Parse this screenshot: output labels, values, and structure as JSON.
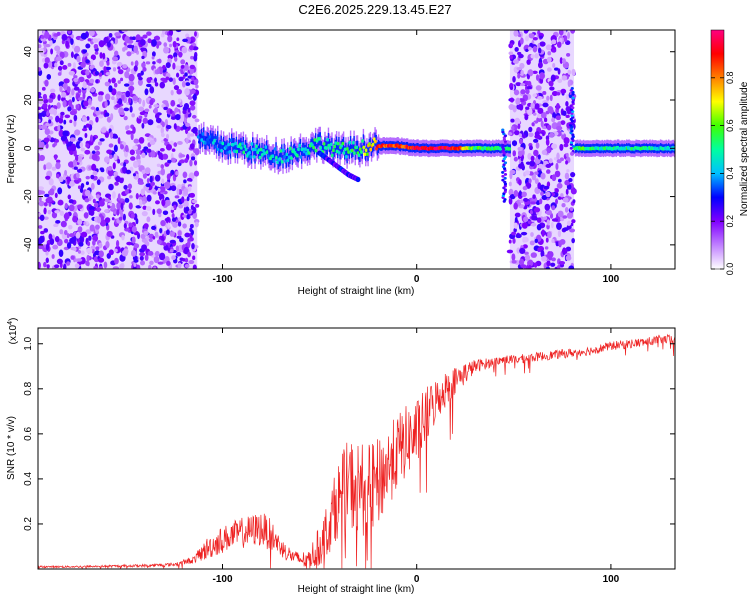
{
  "figure_title": "C2E6.2025.229.13.45.E27",
  "chart_data": [
    {
      "type": "heatmap",
      "title": "",
      "xlabel": "Height of straight line (km)",
      "ylabel": "Frequency (Hz)",
      "xlim": [
        -195,
        133
      ],
      "ylim": [
        -50,
        49
      ],
      "x_ticks": [
        -100,
        0,
        100
      ],
      "y_ticks": [
        -40,
        -20,
        0,
        20,
        40
      ],
      "x_tick_labels": [
        "-100",
        "0",
        "100"
      ],
      "y_tick_labels": [
        "-40",
        "-20",
        "0",
        "20",
        "40"
      ],
      "noise_regions": [
        {
          "x_from": -195,
          "x_to": -113,
          "y_from": -50,
          "y_to": 49
        },
        {
          "x_from": 48,
          "x_to": 81,
          "y_from": -50,
          "y_to": 49
        }
      ],
      "ridge": [
        {
          "x": -125,
          "y": 5,
          "amp": 0.35
        },
        {
          "x": -110,
          "y": 3,
          "amp": 0.4
        },
        {
          "x": -100,
          "y": 1,
          "amp": 0.4
        },
        {
          "x": -90,
          "y": 0,
          "amp": 0.45
        },
        {
          "x": -80,
          "y": -2,
          "amp": 0.45
        },
        {
          "x": -70,
          "y": -3,
          "amp": 0.45
        },
        {
          "x": -60,
          "y": -1,
          "amp": 0.45
        },
        {
          "x": -50,
          "y": 2,
          "amp": 0.5
        },
        {
          "x": -40,
          "y": -1,
          "amp": 0.5
        },
        {
          "x": -30,
          "y": 0,
          "amp": 0.5
        },
        {
          "x": -20,
          "y": 1,
          "amp": 0.85
        },
        {
          "x": -10,
          "y": 1,
          "amp": 0.85
        },
        {
          "x": 0,
          "y": 0,
          "amp": 0.95
        },
        {
          "x": 10,
          "y": 0,
          "amp": 0.95
        },
        {
          "x": 20,
          "y": 0,
          "amp": 0.9
        },
        {
          "x": 30,
          "y": 0,
          "amp": 0.55
        },
        {
          "x": 40,
          "y": 0,
          "amp": 0.5
        },
        {
          "x": 85,
          "y": 0,
          "amp": 0.55
        },
        {
          "x": 95,
          "y": 0,
          "amp": 0.5
        },
        {
          "x": 105,
          "y": 0,
          "amp": 0.5
        },
        {
          "x": 115,
          "y": 0,
          "amp": 0.5
        },
        {
          "x": 125,
          "y": 0,
          "amp": 0.45
        },
        {
          "x": 133,
          "y": 0,
          "amp": 0.45
        }
      ],
      "side_branch": [
        {
          "x": -50,
          "y": -2
        },
        {
          "x": -40,
          "y": -8
        },
        {
          "x": -35,
          "y": -11
        },
        {
          "x": -30,
          "y": -13
        }
      ],
      "colorbar": {
        "label": "Normalized spectral amplitude",
        "range": [
          0,
          1
        ],
        "ticks": [
          0.0,
          0.2,
          0.4,
          0.6,
          0.8
        ],
        "tick_labels": [
          "0.0",
          "0.2",
          "0.4",
          "0.6",
          "0.8"
        ],
        "colors": [
          "#ffffff",
          "#c080ff",
          "#8000ff",
          "#0000ff",
          "#00c0ff",
          "#00ffa0",
          "#40ff00",
          "#ffff00",
          "#ff8000",
          "#ff0000",
          "#ff0080"
        ]
      }
    },
    {
      "type": "line",
      "title": "",
      "xlabel": "Height of straight line (km)",
      "ylabel": "SNR (10 * v/v)",
      "y_multiplier": "(x10",
      "y_multiplier_exp": "4",
      "y_multiplier_close": ")",
      "xlim": [
        -195,
        133
      ],
      "ylim": [
        0,
        1.07
      ],
      "x_ticks": [
        -100,
        0,
        100
      ],
      "y_ticks": [
        0.2,
        0.4,
        0.6,
        0.8,
        1.0
      ],
      "x_tick_labels": [
        "-100",
        "0",
        "100"
      ],
      "y_tick_labels": [
        "0.2",
        "0.4",
        "0.6",
        "0.8",
        "1.0"
      ],
      "color": "#ee2222",
      "series": [
        {
          "x": [
            -195,
            -180,
            -160,
            -140,
            -125,
            -115,
            -108,
            -100,
            -95,
            -90,
            -85,
            -80,
            -75,
            -72,
            -68,
            -63,
            -58,
            -55,
            -50,
            -45,
            -40,
            -35,
            -30,
            -25,
            -20,
            -15,
            -10,
            -5,
            0,
            5,
            10,
            15,
            20,
            25,
            30,
            35,
            40,
            45,
            50,
            60,
            70,
            80,
            90,
            100,
            110,
            120,
            125,
            130,
            133
          ],
          "y": [
            0.01,
            0.01,
            0.012,
            0.015,
            0.02,
            0.04,
            0.09,
            0.13,
            0.15,
            0.16,
            0.17,
            0.18,
            0.15,
            0.12,
            0.08,
            0.05,
            0.04,
            0.05,
            0.1,
            0.2,
            0.32,
            0.38,
            0.36,
            0.35,
            0.38,
            0.45,
            0.52,
            0.57,
            0.6,
            0.68,
            0.75,
            0.8,
            0.84,
            0.87,
            0.9,
            0.91,
            0.92,
            0.93,
            0.93,
            0.94,
            0.95,
            0.96,
            0.97,
            0.99,
            1.0,
            1.01,
            1.02,
            1.02,
            1.01
          ],
          "noise": [
            0.004,
            0.004,
            0.005,
            0.006,
            0.008,
            0.015,
            0.05,
            0.06,
            0.06,
            0.07,
            0.07,
            0.08,
            0.07,
            0.05,
            0.04,
            0.03,
            0.04,
            0.05,
            0.09,
            0.13,
            0.17,
            0.2,
            0.22,
            0.2,
            0.2,
            0.18,
            0.17,
            0.16,
            0.15,
            0.13,
            0.1,
            0.08,
            0.06,
            0.05,
            0.03,
            0.025,
            0.02,
            0.02,
            0.02,
            0.02,
            0.02,
            0.02,
            0.02,
            0.02,
            0.02,
            0.02,
            0.02,
            0.02,
            0.02
          ]
        }
      ]
    }
  ]
}
